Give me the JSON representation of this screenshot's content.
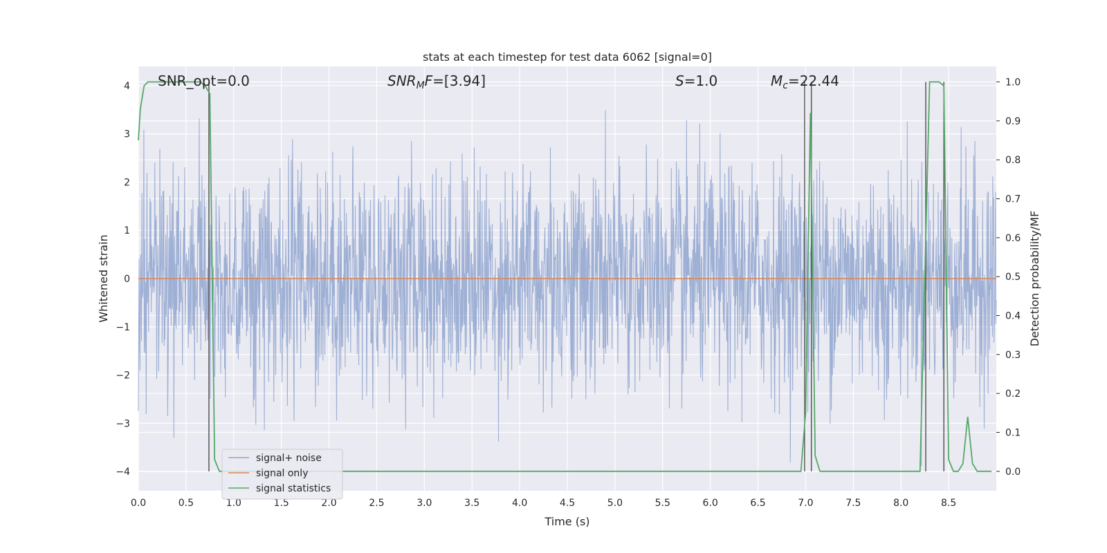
{
  "chart_data": {
    "type": "line",
    "title": "stats at each timestep for test data 6062 [signal=0]",
    "xlabel": "Time (s)",
    "ylabel_left": "Whitened strain",
    "ylabel_right": "Detection probability/MF",
    "xlim": [
      0.0,
      9.0
    ],
    "ylim_left": [
      -4.4,
      4.4
    ],
    "ylim_right": [
      -0.05,
      1.04
    ],
    "x_ticks": [
      "0.0",
      "0.5",
      "1.0",
      "1.5",
      "2.0",
      "2.5",
      "3.0",
      "3.5",
      "4.0",
      "4.5",
      "5.0",
      "5.5",
      "6.0",
      "6.5",
      "7.0",
      "7.5",
      "8.0",
      "8.5"
    ],
    "y_ticks_left": [
      "4",
      "3",
      "2",
      "1",
      "0",
      "−1",
      "−2",
      "−3",
      "−4"
    ],
    "y_ticks_right": [
      "1.0",
      "0.9",
      "0.8",
      "0.7",
      "0.6",
      "0.5",
      "0.4",
      "0.3",
      "0.2",
      "0.1",
      "0.0"
    ],
    "grid": true,
    "legend_position": "lower-left",
    "annotations": {
      "snr_opt": "SNR_opt=0.0",
      "snr_mf_italic": "SNR",
      "snr_mf_sub": "M",
      "snr_mf_italic2": "F",
      "snr_mf_value": "=[3.94]",
      "s_italic": "S",
      "s_value": "=1.0",
      "mc_italic": "M",
      "mc_sub": "c",
      "mc_value": "=22.44"
    },
    "series": [
      {
        "name": "signal+ noise",
        "color": "#8fa5cf",
        "description_values": "whitened noisy strain, roughly gaussian, amplitude mostly within -4..4"
      },
      {
        "name": "signal only",
        "color": "#dd8452",
        "values_constant": 0.0
      },
      {
        "name": "signal statistics",
        "color": "#55a868",
        "axis": "right",
        "x": [
          0.0,
          0.02,
          0.06,
          0.1,
          0.15,
          0.2,
          0.3,
          0.4,
          0.5,
          0.6,
          0.65,
          0.7,
          0.75,
          0.8,
          0.85,
          0.9,
          1.0,
          2.0,
          3.0,
          4.0,
          5.0,
          6.0,
          6.9,
          6.95,
          7.0,
          7.05,
          7.1,
          7.15,
          7.2,
          7.5,
          8.0,
          8.2,
          8.25,
          8.3,
          8.35,
          8.4,
          8.45,
          8.5,
          8.55,
          8.6,
          8.65,
          8.7,
          8.75,
          8.8,
          8.85,
          8.9,
          8.95
        ],
        "y": [
          0.85,
          0.93,
          0.99,
          1.0,
          1.0,
          1.0,
          1.0,
          1.0,
          1.0,
          1.0,
          1.0,
          0.99,
          0.97,
          0.03,
          0.0,
          0.0,
          0.0,
          0.0,
          0.0,
          0.0,
          0.0,
          0.0,
          0.0,
          0.0,
          0.15,
          0.92,
          0.04,
          0.0,
          0.0,
          0.0,
          0.0,
          0.0,
          0.5,
          1.0,
          1.0,
          1.0,
          0.99,
          0.03,
          0.0,
          0.0,
          0.02,
          0.14,
          0.02,
          0.0,
          0.0,
          0.0,
          0.0
        ]
      }
    ],
    "vertical_markers_x": [
      0.74,
      6.99,
      7.06,
      8.26,
      8.45
    ],
    "colors": {
      "plot_background": "#eaeaf2",
      "grid": "#ffffff",
      "marker_line": "#555555",
      "text": "#262626"
    }
  }
}
